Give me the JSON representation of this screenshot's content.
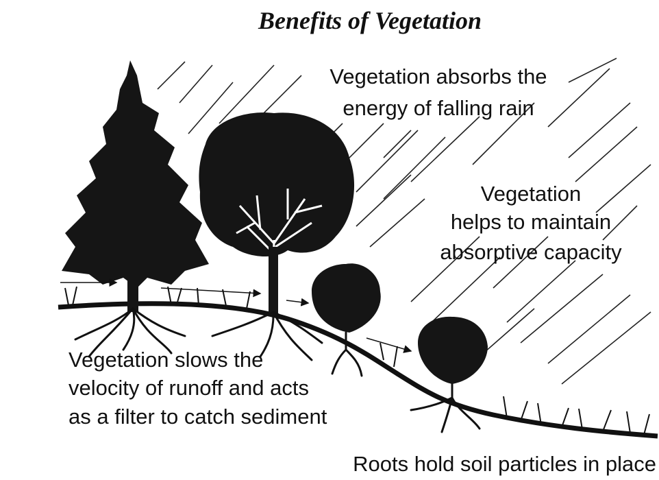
{
  "title": "Benefits of Vegetation",
  "labels": [
    {
      "lines": [
        "Vegetation absorbs the",
        "energy of falling rain"
      ]
    },
    {
      "lines": [
        "Vegetation",
        "helps to maintain",
        "absorptive capacity"
      ]
    },
    {
      "lines": [
        "Vegetation slows the",
        "velocity of runoff and acts",
        "as a filter to catch sediment"
      ]
    },
    {
      "lines": [
        "Roots hold soil particles in place"
      ]
    }
  ]
}
